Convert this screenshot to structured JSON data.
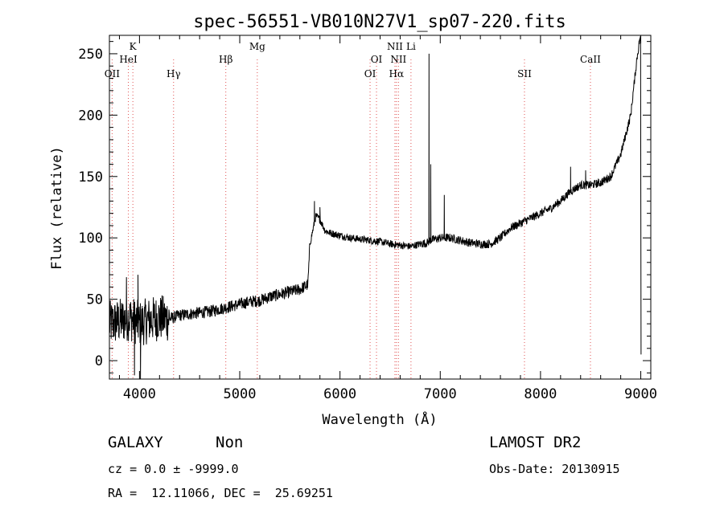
{
  "chart_data": {
    "type": "line",
    "title": "spec-56551-VB010N27V1_sp07-220.fits",
    "xlabel": "Wavelength (Å)",
    "ylabel": "Flux (relative)",
    "xlim": [
      3700,
      9100
    ],
    "ylim": [
      -15,
      265
    ],
    "xticks": [
      4000,
      5000,
      6000,
      7000,
      8000,
      9000
    ],
    "yticks": [
      0,
      50,
      100,
      150,
      200,
      250
    ],
    "grid": false,
    "line_color": "#000000",
    "marker_color": "#e05050",
    "lines": [
      {
        "name": "OII",
        "wavelength": 3727,
        "row": 3
      },
      {
        "name": "K",
        "wavelength": 3934,
        "row": 0
      },
      {
        "name": "HeI",
        "wavelength": 3889,
        "row": 1
      },
      {
        "name": "Hγ",
        "wavelength": 4340,
        "row": 3
      },
      {
        "name": "Hβ",
        "wavelength": 4861,
        "row": 2
      },
      {
        "name": "Mg",
        "wavelength": 5175,
        "row": 0
      },
      {
        "name": "OI",
        "wavelength": 6300,
        "row": 3
      },
      {
        "name": "OI",
        "wavelength": 6364,
        "row": 2
      },
      {
        "name": "NII",
        "wavelength": 6548,
        "row": 0
      },
      {
        "name": "NII",
        "wavelength": 6583,
        "row": 2
      },
      {
        "name": "Hα",
        "wavelength": 6563,
        "row": 3
      },
      {
        "name": "Li",
        "wavelength": 6708,
        "row": 0
      },
      {
        "name": "SII",
        "wavelength": 6724,
        "row": 3,
        "label_at": 7800,
        "hidden_label": true
      },
      {
        "name": "SII",
        "wavelength": 7840,
        "row": 3
      },
      {
        "name": "CaII",
        "wavelength": 8498,
        "row": 2
      }
    ],
    "spectrum_anchors": [
      [
        3700,
        30
      ],
      [
        3800,
        32
      ],
      [
        3900,
        35
      ],
      [
        4000,
        30
      ],
      [
        4100,
        33
      ],
      [
        4200,
        35
      ],
      [
        4300,
        34
      ],
      [
        4400,
        37
      ],
      [
        4500,
        38
      ],
      [
        4600,
        39
      ],
      [
        4700,
        40
      ],
      [
        4800,
        42
      ],
      [
        4900,
        44
      ],
      [
        5000,
        46
      ],
      [
        5100,
        48
      ],
      [
        5200,
        49
      ],
      [
        5300,
        52
      ],
      [
        5400,
        54
      ],
      [
        5500,
        56
      ],
      [
        5600,
        58
      ],
      [
        5680,
        62
      ],
      [
        5700,
        95
      ],
      [
        5760,
        118
      ],
      [
        5800,
        115
      ],
      [
        5850,
        106
      ],
      [
        5900,
        104
      ],
      [
        6000,
        102
      ],
      [
        6100,
        100
      ],
      [
        6200,
        99
      ],
      [
        6300,
        98
      ],
      [
        6400,
        97
      ],
      [
        6500,
        95
      ],
      [
        6600,
        94
      ],
      [
        6700,
        93
      ],
      [
        6800,
        95
      ],
      [
        6870,
        96
      ],
      [
        6900,
        98
      ],
      [
        7000,
        100
      ],
      [
        7100,
        100
      ],
      [
        7200,
        98
      ],
      [
        7300,
        96
      ],
      [
        7400,
        95
      ],
      [
        7500,
        95
      ],
      [
        7600,
        100
      ],
      [
        7700,
        108
      ],
      [
        7800,
        112
      ],
      [
        7900,
        116
      ],
      [
        8000,
        120
      ],
      [
        8100,
        124
      ],
      [
        8200,
        130
      ],
      [
        8300,
        138
      ],
      [
        8400,
        143
      ],
      [
        8500,
        143
      ],
      [
        8600,
        145
      ],
      [
        8700,
        150
      ],
      [
        8800,
        168
      ],
      [
        8900,
        200
      ],
      [
        8960,
        245
      ],
      [
        8990,
        262
      ],
      [
        9000,
        262
      ]
    ],
    "spectrum_spikes": [
      [
        3950,
        -12
      ],
      [
        3985,
        70
      ],
      [
        4010,
        -15
      ],
      [
        3870,
        68
      ],
      [
        6888,
        250
      ],
      [
        6905,
        160
      ],
      [
        7040,
        135
      ],
      [
        5745,
        130
      ],
      [
        5800,
        125
      ],
      [
        8300,
        158
      ],
      [
        8450,
        155
      ],
      [
        9003,
        5
      ]
    ]
  },
  "footer": {
    "object_class": "GALAXY",
    "subclass": "Non",
    "survey": "LAMOST DR2",
    "cz": "cz = 0.0 ± -9999.0",
    "obs_date": "Obs-Date: 20130915",
    "radec": "RA =  12.11066, DEC =  25.69251"
  }
}
